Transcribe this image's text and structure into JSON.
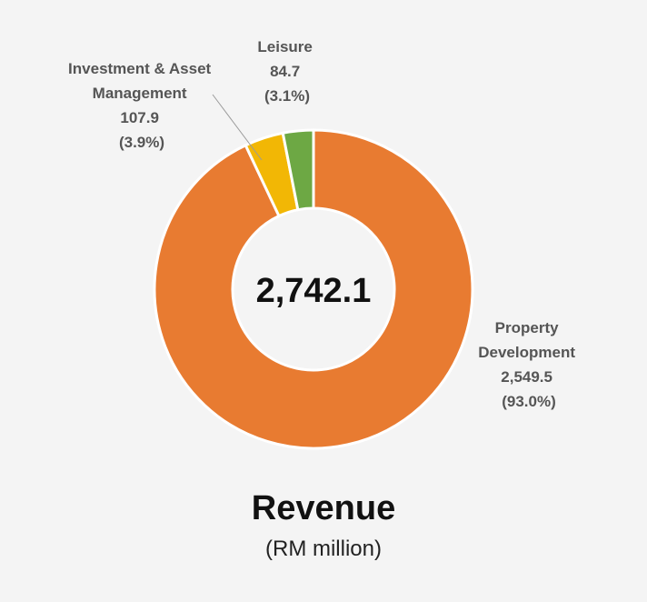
{
  "chart_data": {
    "type": "pie",
    "variant": "donut",
    "title": "Revenue",
    "subtitle": "(RM million)",
    "center_label": "2,742.1",
    "legend": "none",
    "slices": [
      {
        "name": "Property Development",
        "value": 2549.5,
        "value_label": "2,549.5",
        "percent_label": "(93.0%)",
        "label_lines": [
          "Property",
          "Development"
        ],
        "color": "#E87B31"
      },
      {
        "name": "Investment & Asset Management",
        "value": 107.9,
        "value_label": "107.9",
        "percent_label": "(3.9%)",
        "label_lines": [
          "Investment & Asset",
          "Management"
        ],
        "color": "#F2B705"
      },
      {
        "name": "Leisure",
        "value": 84.7,
        "value_label": "84.7",
        "percent_label": "(3.1%)",
        "label_lines": [
          "Leisure"
        ],
        "color": "#6DA844"
      }
    ]
  }
}
